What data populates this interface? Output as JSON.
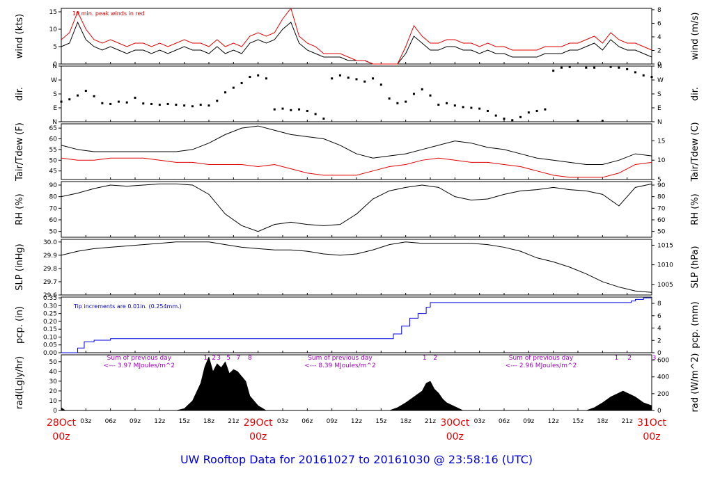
{
  "title": "UW Rooftop Data for 20161027  to  20161030 @ 23:58:16  (UTC)",
  "colors": {
    "black": "#000000",
    "red": "#e00000",
    "blue": "#0000e0",
    "purple": "#a000c0"
  },
  "time_axis": {
    "range_hours": [
      0,
      72
    ],
    "hour_labels": [
      "03z",
      "06z",
      "09z",
      "12z",
      "15z",
      "18z",
      "21z",
      "03z",
      "06z",
      "09z",
      "12z",
      "15z",
      "18z",
      "21z",
      "03z",
      "06z",
      "09z",
      "12z",
      "15z",
      "18z",
      "21z"
    ],
    "hour_positions": [
      3,
      6,
      9,
      12,
      15,
      18,
      21,
      27,
      30,
      33,
      36,
      39,
      42,
      45,
      51,
      54,
      57,
      60,
      63,
      66,
      69
    ],
    "day_labels": [
      {
        "hour": 0,
        "top": "28Oct",
        "bottom": "00z"
      },
      {
        "hour": 24,
        "top": "29Oct",
        "bottom": "00z"
      },
      {
        "hour": 48,
        "top": "30Oct",
        "bottom": "00z"
      },
      {
        "hour": 72,
        "top": "31Oct",
        "bottom": "00z"
      }
    ]
  },
  "panels": [
    {
      "id": "wind",
      "left_label": "wind (kts)",
      "right_label": "wind (m/s)",
      "left_ticks": [
        "0",
        "5",
        "10",
        "15"
      ],
      "right_ticks": [
        "0",
        "2",
        "4",
        "6",
        "8"
      ],
      "annotation": "10 min. peak winds in red"
    },
    {
      "id": "dir",
      "left_label": "dir.",
      "right_label": "dir.",
      "left_ticks": [
        "N",
        "E",
        "S",
        "W",
        "N"
      ],
      "right_ticks": [
        "N",
        "E",
        "S",
        "W",
        "N"
      ]
    },
    {
      "id": "temp",
      "left_label": "Tair/Tdew (F)",
      "right_label": "Tair/Tdew (C)",
      "left_ticks": [
        "45",
        "50",
        "55",
        "60",
        "65"
      ],
      "right_ticks": [
        "5",
        "10",
        "15"
      ]
    },
    {
      "id": "rh",
      "left_label": "RH (%)",
      "right_label": "RH (%)",
      "left_ticks": [
        "50",
        "60",
        "70",
        "80",
        "90"
      ],
      "right_ticks": [
        "50",
        "60",
        "70",
        "80",
        "90"
      ]
    },
    {
      "id": "slp",
      "left_label": "SLP (inHg)",
      "right_label": "SLP (hPa)",
      "left_ticks": [
        "29.6",
        "29.7",
        "29.8",
        "29.9",
        "30.0"
      ],
      "right_ticks": [
        "1005",
        "1010",
        "1015"
      ]
    },
    {
      "id": "pcp",
      "left_label": "pcp. (in)",
      "right_label": "pcp. (mm)",
      "left_ticks": [
        "0.00",
        "0.05",
        "0.10",
        "0.15",
        "0.20",
        "0.25",
        "0.30",
        "0.35"
      ],
      "right_ticks": [
        "0",
        "2",
        "4",
        "6",
        "8"
      ],
      "annotation": "Tip increments are 0.01in. (0.254mm.)"
    },
    {
      "id": "rad",
      "left_label": "rad(Lgly/hr)",
      "right_label": "rad (W/m^2)",
      "left_ticks": [
        "0",
        "10",
        "20",
        "30",
        "40",
        "50"
      ],
      "right_ticks": [
        "0",
        "200",
        "400",
        "600"
      ]
    }
  ],
  "rad_annotations": [
    {
      "hour": 9.5,
      "line1": "Sum of previous day",
      "line2": "<--- 3.97 MJoules/m^2"
    },
    {
      "hour": 34,
      "line1": "Sum of previous day",
      "line2": "<--- 8.39 MJoules/m^2"
    },
    {
      "hour": 58.5,
      "line1": "Sum of previous day",
      "line2": "<--- 2.96 MJoules/m^2"
    }
  ],
  "rad_hour_marks": [
    {
      "hour": 17.6,
      "text": "1"
    },
    {
      "hour": 18.6,
      "text": "2"
    },
    {
      "hour": 19.2,
      "text": "3"
    },
    {
      "hour": 20.4,
      "text": "5"
    },
    {
      "hour": 21.6,
      "text": "7"
    },
    {
      "hour": 23.0,
      "text": "8"
    },
    {
      "hour": 44.3,
      "text": "1"
    },
    {
      "hour": 45.6,
      "text": "2"
    },
    {
      "hour": 67.7,
      "text": "1"
    },
    {
      "hour": 69.3,
      "text": "2"
    },
    {
      "hour": 72.3,
      "text": "3"
    }
  ],
  "chart_data": {
    "type": "line",
    "x_unit": "hours since 28Oct 00z",
    "series": [
      {
        "panel": "wind",
        "color": "#000000",
        "x": [
          0,
          1,
          2,
          3,
          4,
          5,
          6,
          7,
          8,
          9,
          10,
          11,
          12,
          13,
          14,
          15,
          16,
          17,
          18,
          19,
          20,
          21,
          22,
          23,
          24,
          25,
          26,
          27,
          28,
          29,
          30,
          31,
          32,
          33,
          34,
          35,
          36,
          37,
          38,
          39,
          40,
          41,
          42,
          43,
          44,
          45,
          46,
          47,
          48,
          49,
          50,
          51,
          52,
          53,
          54,
          55,
          56,
          57,
          58,
          59,
          60,
          61,
          62,
          63,
          64,
          65,
          66,
          67,
          68,
          69,
          70,
          71,
          72
        ],
        "y": [
          5,
          6,
          12,
          7,
          5,
          4,
          5,
          4,
          3,
          4,
          4,
          3,
          4,
          3,
          4,
          5,
          4,
          4,
          3,
          5,
          3,
          4,
          3,
          6,
          7,
          6,
          7,
          10,
          12,
          6,
          4,
          3,
          2,
          2,
          2,
          1,
          1,
          1,
          0,
          0,
          0,
          0,
          3,
          8,
          6,
          4,
          4,
          5,
          5,
          4,
          4,
          3,
          4,
          3,
          3,
          2,
          2,
          2,
          2,
          3,
          3,
          3,
          4,
          4,
          5,
          6,
          4,
          7,
          5,
          4,
          4,
          3,
          2
        ]
      },
      {
        "panel": "wind",
        "color": "#e00000",
        "x": [
          0,
          1,
          2,
          3,
          4,
          5,
          6,
          7,
          8,
          9,
          10,
          11,
          12,
          13,
          14,
          15,
          16,
          17,
          18,
          19,
          20,
          21,
          22,
          23,
          24,
          25,
          26,
          27,
          28,
          29,
          30,
          31,
          32,
          33,
          34,
          35,
          36,
          37,
          38,
          39,
          40,
          41,
          42,
          43,
          44,
          45,
          46,
          47,
          48,
          49,
          50,
          51,
          52,
          53,
          54,
          55,
          56,
          57,
          58,
          59,
          60,
          61,
          62,
          63,
          64,
          65,
          66,
          67,
          68,
          69,
          70,
          71,
          72
        ],
        "y": [
          7,
          9,
          15,
          10,
          7,
          6,
          7,
          6,
          5,
          6,
          6,
          5,
          6,
          5,
          6,
          7,
          6,
          6,
          5,
          7,
          5,
          6,
          5,
          8,
          9,
          8,
          9,
          13,
          16,
          8,
          6,
          5,
          3,
          3,
          3,
          2,
          1,
          1,
          0,
          0,
          0,
          0,
          5,
          11,
          8,
          6,
          6,
          7,
          7,
          6,
          6,
          5,
          6,
          5,
          5,
          4,
          4,
          4,
          4,
          5,
          5,
          5,
          6,
          6,
          7,
          8,
          6,
          9,
          7,
          6,
          6,
          5,
          4
        ]
      },
      {
        "panel": "dir",
        "color": "#000000",
        "style": "dots",
        "x": [
          0,
          1,
          2,
          3,
          4,
          5,
          6,
          7,
          8,
          9,
          10,
          11,
          12,
          13,
          14,
          15,
          16,
          17,
          18,
          19,
          20,
          21,
          22,
          23,
          24,
          25,
          26,
          27,
          28,
          29,
          30,
          31,
          32,
          33,
          34,
          35,
          36,
          37,
          38,
          39,
          40,
          41,
          42,
          43,
          44,
          45,
          46,
          47,
          48,
          49,
          50,
          51,
          52,
          53,
          54,
          55,
          56,
          57,
          58,
          59,
          60,
          61,
          62,
          63,
          64,
          65,
          66,
          67,
          68,
          69,
          70,
          71,
          72
        ],
        "y": [
          130,
          145,
          170,
          200,
          165,
          120,
          115,
          130,
          125,
          155,
          118,
          115,
          110,
          115,
          110,
          105,
          100,
          110,
          105,
          135,
          190,
          220,
          250,
          290,
          300,
          280,
          80,
          85,
          75,
          80,
          70,
          50,
          20,
          280,
          300,
          285,
          275,
          260,
          280,
          240,
          150,
          120,
          130,
          180,
          210,
          170,
          110,
          120,
          105,
          95,
          90,
          85,
          70,
          40,
          20,
          10,
          30,
          60,
          70,
          80,
          330,
          350,
          355,
          5,
          350,
          350,
          5,
          355,
          350,
          340,
          320,
          300,
          290
        ]
      },
      {
        "panel": "temp",
        "name": "Tair",
        "color": "#000000",
        "x": [
          0,
          2,
          4,
          6,
          8,
          10,
          12,
          14,
          16,
          18,
          20,
          22,
          24,
          26,
          28,
          30,
          32,
          34,
          36,
          38,
          40,
          42,
          44,
          46,
          48,
          50,
          52,
          54,
          56,
          58,
          60,
          62,
          64,
          66,
          68,
          70,
          72
        ],
        "y": [
          57,
          55,
          54,
          54,
          54,
          54,
          54,
          54,
          55,
          58,
          62,
          65,
          66,
          64,
          62,
          61,
          60,
          57,
          53,
          51,
          52,
          53,
          55,
          57,
          59,
          58,
          56,
          55,
          53,
          51,
          50,
          49,
          48,
          48,
          50,
          53,
          52
        ]
      },
      {
        "panel": "temp",
        "name": "Tdew",
        "color": "#e00000",
        "x": [
          0,
          2,
          4,
          6,
          8,
          10,
          12,
          14,
          16,
          18,
          20,
          22,
          24,
          26,
          28,
          30,
          32,
          34,
          36,
          38,
          40,
          42,
          44,
          46,
          48,
          50,
          52,
          54,
          56,
          58,
          60,
          62,
          64,
          66,
          68,
          70,
          72
        ],
        "y": [
          51,
          50,
          50,
          51,
          51,
          51,
          50,
          49,
          49,
          48,
          48,
          48,
          47,
          48,
          46,
          44,
          43,
          43,
          43,
          45,
          47,
          48,
          50,
          51,
          50,
          49,
          49,
          48,
          47,
          45,
          43,
          42,
          42,
          42,
          44,
          48,
          49
        ]
      },
      {
        "panel": "rh",
        "color": "#000000",
        "x": [
          0,
          2,
          4,
          6,
          8,
          10,
          12,
          14,
          16,
          18,
          20,
          22,
          24,
          26,
          28,
          30,
          32,
          34,
          36,
          38,
          40,
          42,
          44,
          46,
          48,
          50,
          52,
          54,
          56,
          58,
          60,
          62,
          64,
          66,
          68,
          70,
          72
        ],
        "y": [
          80,
          83,
          87,
          90,
          89,
          90,
          91,
          91,
          90,
          82,
          65,
          55,
          50,
          56,
          58,
          56,
          55,
          56,
          65,
          78,
          85,
          88,
          90,
          88,
          80,
          77,
          78,
          82,
          85,
          86,
          88,
          86,
          85,
          82,
          72,
          88,
          91
        ]
      },
      {
        "panel": "slp",
        "color": "#000000",
        "x": [
          0,
          2,
          4,
          6,
          8,
          10,
          12,
          14,
          16,
          18,
          20,
          22,
          24,
          26,
          28,
          30,
          32,
          34,
          36,
          38,
          40,
          42,
          44,
          46,
          48,
          50,
          52,
          54,
          56,
          58,
          60,
          62,
          64,
          66,
          68,
          70,
          72
        ],
        "y": [
          29.9,
          29.93,
          29.95,
          29.96,
          29.97,
          29.98,
          29.99,
          30.0,
          30.0,
          30.0,
          29.98,
          29.96,
          29.95,
          29.94,
          29.94,
          29.93,
          29.91,
          29.9,
          29.91,
          29.94,
          29.98,
          30.0,
          29.99,
          29.99,
          29.99,
          29.99,
          29.98,
          29.96,
          29.93,
          29.88,
          29.85,
          29.81,
          29.76,
          29.7,
          29.66,
          29.63,
          29.62
        ]
      },
      {
        "panel": "pcp",
        "color": "#0000e0",
        "style": "step",
        "x": [
          0,
          0.5,
          1,
          2,
          2.8,
          4,
          6,
          8,
          10,
          12,
          14,
          16,
          18,
          20,
          22,
          24,
          26,
          28,
          30,
          32,
          34,
          36,
          38,
          40,
          40.5,
          41.5,
          42.5,
          43.5,
          44.5,
          45,
          46,
          48,
          50,
          52,
          54,
          56,
          58,
          60,
          62,
          64,
          66,
          68,
          69.5,
          70,
          71,
          72
        ],
        "y": [
          0,
          0,
          0,
          0.03,
          0.07,
          0.08,
          0.09,
          0.09,
          0.09,
          0.09,
          0.09,
          0.09,
          0.09,
          0.09,
          0.09,
          0.09,
          0.09,
          0.09,
          0.09,
          0.09,
          0.09,
          0.09,
          0.09,
          0.09,
          0.12,
          0.17,
          0.22,
          0.25,
          0.29,
          0.32,
          0.32,
          0.32,
          0.32,
          0.32,
          0.32,
          0.32,
          0.32,
          0.32,
          0.32,
          0.32,
          0.32,
          0.32,
          0.33,
          0.34,
          0.35,
          0.35
        ]
      },
      {
        "panel": "rad",
        "color": "#000000",
        "style": "area",
        "x": [
          0,
          0.5,
          14,
          15,
          16,
          17,
          17.5,
          18,
          18.5,
          19,
          19.5,
          20,
          20.5,
          21,
          21.5,
          22,
          22.5,
          23,
          24,
          25,
          40,
          41,
          42,
          43,
          44,
          44.5,
          45,
          45.5,
          46,
          46.5,
          47,
          48,
          49,
          64,
          65,
          66,
          67,
          68,
          68.5,
          69,
          69.5,
          70,
          71,
          72
        ],
        "y": [
          3,
          0,
          0,
          2,
          10,
          28,
          45,
          55,
          40,
          48,
          44,
          50,
          38,
          42,
          40,
          35,
          30,
          15,
          5,
          0,
          0,
          3,
          8,
          14,
          20,
          28,
          30,
          22,
          18,
          12,
          8,
          4,
          0,
          0,
          3,
          8,
          14,
          18,
          20,
          18,
          16,
          14,
          8,
          5
        ]
      }
    ]
  }
}
